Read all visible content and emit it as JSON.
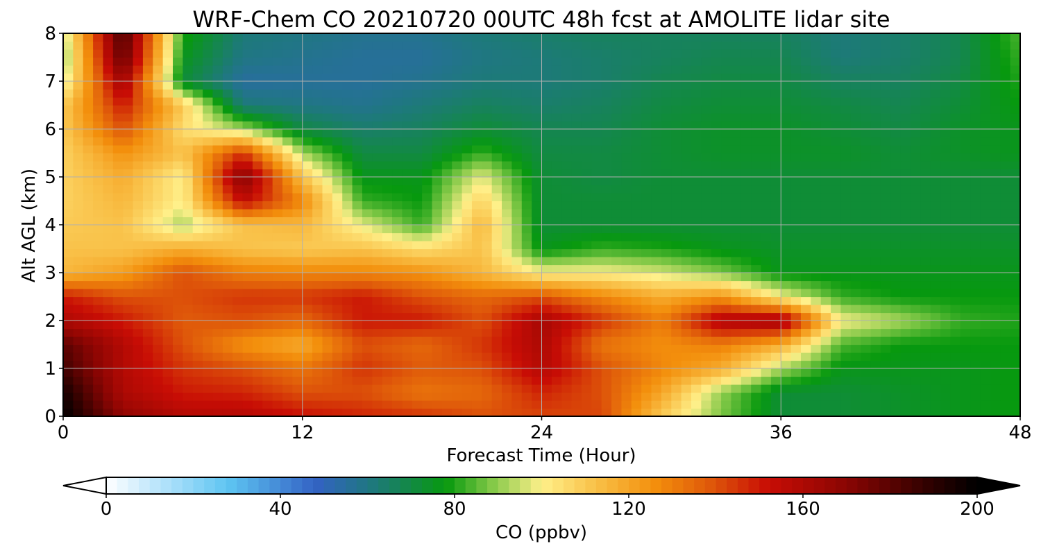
{
  "chart_data": {
    "type": "heatmap",
    "title": "WRF-Chem CO  20210720 00UTC 48h fcst at AMOLITE lidar site",
    "xlabel": "Forecast Time (Hour)",
    "ylabel": "Alt AGL (km)",
    "xlim": [
      0,
      48
    ],
    "ylim": [
      0,
      8
    ],
    "x_ticks": [
      "0",
      "12",
      "24",
      "36",
      "48"
    ],
    "y_ticks": [
      "0",
      "1",
      "2",
      "3",
      "4",
      "5",
      "6",
      "7",
      "8"
    ],
    "grid": true,
    "x": [
      0,
      3,
      6,
      9,
      12,
      15,
      18,
      21,
      24,
      27,
      30,
      33,
      36,
      39,
      42,
      45,
      48
    ],
    "y": [
      0,
      0.5,
      1,
      1.5,
      2,
      2.5,
      3,
      3.5,
      4,
      4.5,
      5,
      5.5,
      6,
      6.5,
      7,
      7.5,
      8
    ],
    "z_units": "ppbv",
    "z": [
      [
        200,
        168,
        158,
        158,
        152,
        148,
        145,
        140,
        142,
        142,
        110,
        88,
        72,
        72,
        74,
        76,
        78
      ],
      [
        195,
        160,
        150,
        148,
        140,
        140,
        132,
        135,
        148,
        140,
        120,
        90,
        72,
        72,
        74,
        76,
        78
      ],
      [
        185,
        158,
        145,
        140,
        132,
        145,
        138,
        140,
        158,
        140,
        128,
        118,
        92,
        76,
        76,
        76,
        78
      ],
      [
        180,
        158,
        140,
        125,
        118,
        140,
        135,
        145,
        160,
        132,
        126,
        130,
        118,
        84,
        78,
        78,
        78
      ],
      [
        160,
        150,
        138,
        140,
        135,
        150,
        150,
        140,
        162,
        145,
        130,
        160,
        165,
        100,
        92,
        82,
        80
      ],
      [
        150,
        140,
        140,
        145,
        145,
        150,
        140,
        135,
        140,
        128,
        118,
        125,
        100,
        82,
        78,
        78,
        78
      ],
      [
        115,
        122,
        140,
        130,
        128,
        128,
        125,
        115,
        100,
        100,
        96,
        88,
        76,
        76,
        76,
        76,
        76
      ],
      [
        112,
        112,
        118,
        112,
        110,
        112,
        105,
        112,
        76,
        82,
        80,
        76,
        74,
        74,
        74,
        74,
        74
      ],
      [
        110,
        112,
        92,
        112,
        115,
        98,
        82,
        115,
        72,
        72,
        72,
        72,
        72,
        72,
        72,
        72,
        72
      ],
      [
        108,
        115,
        100,
        155,
        128,
        82,
        78,
        108,
        72,
        72,
        72,
        72,
        72,
        72,
        72,
        72,
        72
      ],
      [
        108,
        118,
        100,
        172,
        112,
        76,
        76,
        98,
        72,
        70,
        72,
        72,
        72,
        72,
        72,
        72,
        72
      ],
      [
        108,
        125,
        112,
        145,
        92,
        70,
        70,
        82,
        70,
        70,
        72,
        74,
        74,
        74,
        72,
        74,
        76
      ],
      [
        110,
        140,
        105,
        92,
        70,
        64,
        66,
        72,
        68,
        68,
        72,
        74,
        74,
        72,
        70,
        74,
        76
      ],
      [
        110,
        150,
        110,
        62,
        60,
        58,
        62,
        66,
        64,
        66,
        70,
        72,
        72,
        70,
        68,
        72,
        78
      ],
      [
        95,
        165,
        72,
        55,
        56,
        56,
        58,
        62,
        62,
        64,
        68,
        70,
        70,
        66,
        66,
        70,
        80
      ],
      [
        88,
        180,
        76,
        60,
        58,
        56,
        56,
        60,
        62,
        64,
        66,
        68,
        68,
        62,
        64,
        68,
        82
      ],
      [
        92,
        185,
        80,
        62,
        60,
        58,
        58,
        62,
        64,
        66,
        66,
        66,
        66,
        62,
        64,
        68,
        84
      ]
    ],
    "colorbar": {
      "label": "CO  (ppbv)",
      "min": 0,
      "max": 200,
      "ticks": [
        "0",
        "40",
        "80",
        "120",
        "160",
        "200"
      ],
      "extend": "both",
      "colormap_stops": [
        {
          "v": 0,
          "c": "#ffffff"
        },
        {
          "v": 12,
          "c": "#b9e4fb"
        },
        {
          "v": 28,
          "c": "#5ec5f2"
        },
        {
          "v": 48,
          "c": "#3362c4"
        },
        {
          "v": 62,
          "c": "#1d7a78"
        },
        {
          "v": 78,
          "c": "#07990e"
        },
        {
          "v": 88,
          "c": "#7cc644"
        },
        {
          "v": 100,
          "c": "#fff08a"
        },
        {
          "v": 112,
          "c": "#f9c24a"
        },
        {
          "v": 126,
          "c": "#f38f0c"
        },
        {
          "v": 138,
          "c": "#e05c0a"
        },
        {
          "v": 152,
          "c": "#c80d05"
        },
        {
          "v": 170,
          "c": "#8a0503"
        },
        {
          "v": 190,
          "c": "#2a0100"
        },
        {
          "v": 200,
          "c": "#000000"
        }
      ]
    }
  }
}
